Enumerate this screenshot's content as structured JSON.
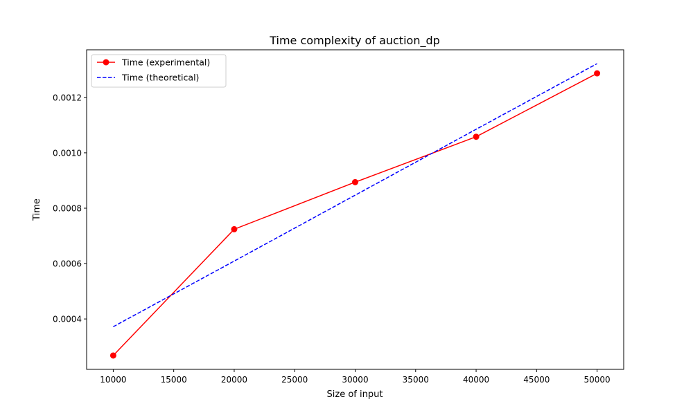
{
  "chart_data": {
    "type": "line",
    "title": "Time complexity of auction_dp",
    "xlabel": "Size of input",
    "ylabel": "Time",
    "xlim": [
      7800,
      52200
    ],
    "ylim": [
      0.000218,
      0.001372
    ],
    "x_ticks": [
      10000,
      15000,
      20000,
      25000,
      30000,
      35000,
      40000,
      45000,
      50000
    ],
    "x_tick_labels": [
      "10000",
      "15000",
      "20000",
      "25000",
      "30000",
      "35000",
      "40000",
      "45000",
      "50000"
    ],
    "y_ticks": [
      0.0004,
      0.0006,
      0.0008,
      0.001,
      0.0012
    ],
    "y_tick_labels": [
      "0.0004",
      "0.0006",
      "0.0008",
      "0.0010",
      "0.0012"
    ],
    "grid": false,
    "legend_position": "top-left",
    "series": [
      {
        "name": "Time (experimental)",
        "color": "#ff0000",
        "style": "solid",
        "marker": "circle",
        "x": [
          10000,
          20000,
          30000,
          40000,
          50000
        ],
        "y": [
          0.000268,
          0.000724,
          0.000894,
          0.001058,
          0.001287
        ]
      },
      {
        "name": "Time (theoretical)",
        "color": "#0000ff",
        "style": "dashed",
        "marker": "none",
        "x": [
          10000,
          20000,
          30000,
          40000,
          50000
        ],
        "y": [
          0.000372,
          0.000609,
          0.000847,
          0.001085,
          0.001322
        ]
      }
    ]
  }
}
